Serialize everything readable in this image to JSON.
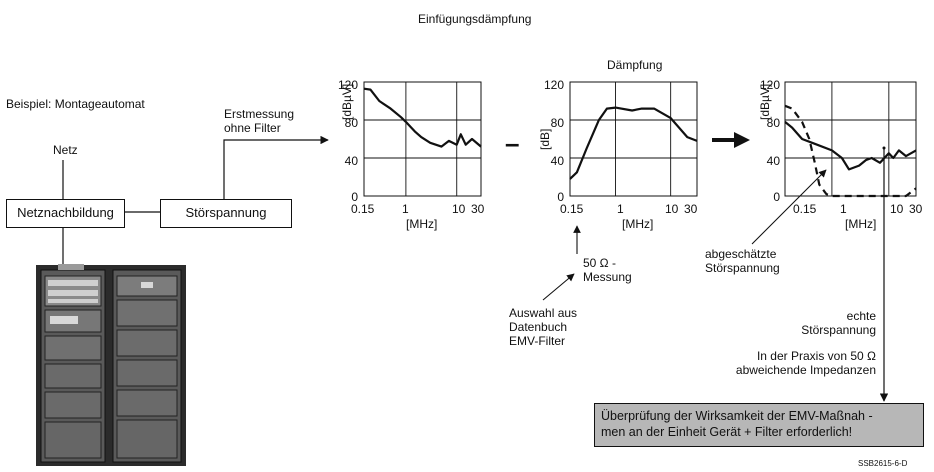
{
  "title": "Einfügungsdämpfung",
  "example_label": "Beispiel: Montageautomat",
  "netz_label": "Netz",
  "box_netznachbildung": "Netznachbildung",
  "box_stoerspannung": "Störspannung",
  "erstmessung": [
    "Erstmessung",
    "ohne Filter"
  ],
  "minus_symbol": "–",
  "chart1": {
    "ylabel": "[dBµV]",
    "xlabel": "[MHz]",
    "yticks": [
      "120",
      "80",
      "40",
      "0"
    ],
    "xticks": [
      "0.15",
      "1",
      "10",
      "30"
    ]
  },
  "chart2": {
    "title": "Dämpfung",
    "ylabel": "[dB]",
    "xlabel": "[MHz]",
    "yticks": [
      "120",
      "80",
      "40",
      "0"
    ],
    "xticks": [
      "0.15",
      "1",
      "10",
      "30"
    ]
  },
  "chart3": {
    "ylabel": "[dBµV]",
    "xlabel": "[MHz]",
    "yticks": [
      "120",
      "80",
      "40",
      "0"
    ],
    "xticks": [
      "0.15",
      "1",
      "10",
      "30"
    ]
  },
  "ohm_note": [
    "50 Ω -",
    "Messung"
  ],
  "auswahl_note": [
    "Auswahl aus",
    "Datenbuch",
    "EMV-Filter"
  ],
  "abgeschaetzte": [
    "abgeschätzte",
    "Störspannung"
  ],
  "echte": [
    "echte",
    "Störspannung"
  ],
  "praxis": [
    "In der Praxis von 50 Ω",
    "abweichende Impedanzen"
  ],
  "result_box": [
    "Überprüfung der Wirksamkeit der EMV-Maßnah -",
    "men an der Einheit Gerät + Filter erforderlich!"
  ],
  "figure_id": "SSB2615-6-D",
  "chart_data": [
    {
      "type": "line",
      "x_scale": "log",
      "ylim": [
        0,
        120
      ],
      "xlim": [
        0.15,
        30
      ],
      "xlabel": "[MHz]",
      "ylabel": "[dBµV]",
      "series": [
        {
          "x": [
            0.15,
            0.2,
            0.3,
            0.5,
            0.8,
            1,
            1.5,
            2,
            3,
            5,
            7,
            10,
            12,
            15,
            20,
            30
          ],
          "y": [
            113,
            112,
            100,
            92,
            83,
            78,
            68,
            62,
            56,
            52,
            58,
            54,
            65,
            54,
            60,
            52
          ]
        }
      ]
    },
    {
      "type": "line",
      "x_scale": "log",
      "ylim": [
        0,
        120
      ],
      "xlim": [
        0.15,
        30
      ],
      "title": "Dämpfung",
      "xlabel": "[MHz]",
      "ylabel": "[dB]",
      "series": [
        {
          "x": [
            0.15,
            0.2,
            0.3,
            0.5,
            0.7,
            1,
            2,
            3,
            5,
            10,
            20,
            30
          ],
          "y": [
            18,
            25,
            50,
            80,
            92,
            93,
            90,
            92,
            92,
            82,
            62,
            58
          ]
        }
      ]
    },
    {
      "type": "line",
      "x_scale": "log",
      "ylim": [
        0,
        120
      ],
      "xlim": [
        0.15,
        30
      ],
      "xlabel": "[MHz]",
      "ylabel": "[dBµV]",
      "series": [
        {
          "style": "solid",
          "x": [
            0.15,
            0.2,
            0.3,
            0.5,
            1,
            1.5,
            2,
            3,
            4,
            5,
            7,
            10,
            12,
            15,
            20,
            30
          ],
          "y": [
            78,
            72,
            60,
            55,
            48,
            40,
            28,
            32,
            38,
            40,
            35,
            45,
            40,
            48,
            42,
            48
          ]
        },
        {
          "style": "dashed",
          "x": [
            0.15,
            0.2,
            0.3,
            0.4,
            0.5,
            0.6,
            0.8,
            1,
            2,
            5,
            10,
            20,
            30
          ],
          "y": [
            95,
            92,
            78,
            60,
            35,
            12,
            2,
            0,
            0,
            0,
            0,
            0,
            8
          ]
        }
      ]
    }
  ]
}
